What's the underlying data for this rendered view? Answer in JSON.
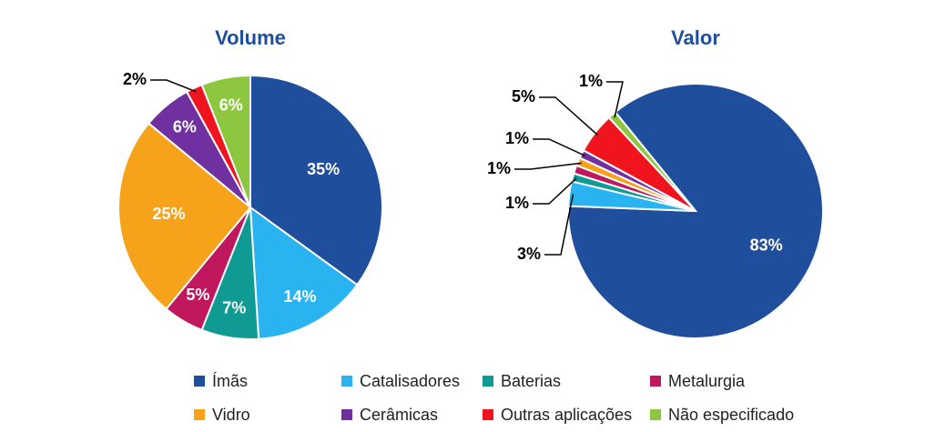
{
  "chart_data": [
    {
      "type": "pie",
      "title": "Volume",
      "categories": [
        "Ímãs",
        "Catalisadores",
        "Baterias",
        "Metalurgia",
        "Vidro",
        "Cerâmicas",
        "Outras aplicações",
        "Não especificado"
      ],
      "values": [
        35,
        14,
        7,
        5,
        25,
        6,
        2,
        6
      ],
      "value_labels": [
        "35%",
        "14%",
        "7%",
        "5%",
        "25%",
        "6%",
        "2%",
        "6%"
      ],
      "colors": [
        "#1f4e9c",
        "#29b3f0",
        "#0f9a94",
        "#c0175e",
        "#f7a21b",
        "#7030a0",
        "#f0141e",
        "#8dc63f"
      ]
    },
    {
      "type": "pie",
      "title": "Valor",
      "categories": [
        "Ímãs",
        "Catalisadores",
        "Baterias",
        "Metalurgia",
        "Vidro",
        "Cerâmicas",
        "Outras aplicações",
        "Não especificado"
      ],
      "values": [
        83,
        3,
        1,
        1,
        1,
        1,
        5,
        1
      ],
      "value_labels": [
        "83%",
        "3%",
        "1%",
        null,
        "1%",
        "1%",
        "5%",
        "1%"
      ],
      "colors": [
        "#1f4e9c",
        "#29b3f0",
        "#0f9a94",
        "#c0175e",
        "#f7a21b",
        "#7030a0",
        "#f0141e",
        "#8dc63f"
      ]
    }
  ]
}
